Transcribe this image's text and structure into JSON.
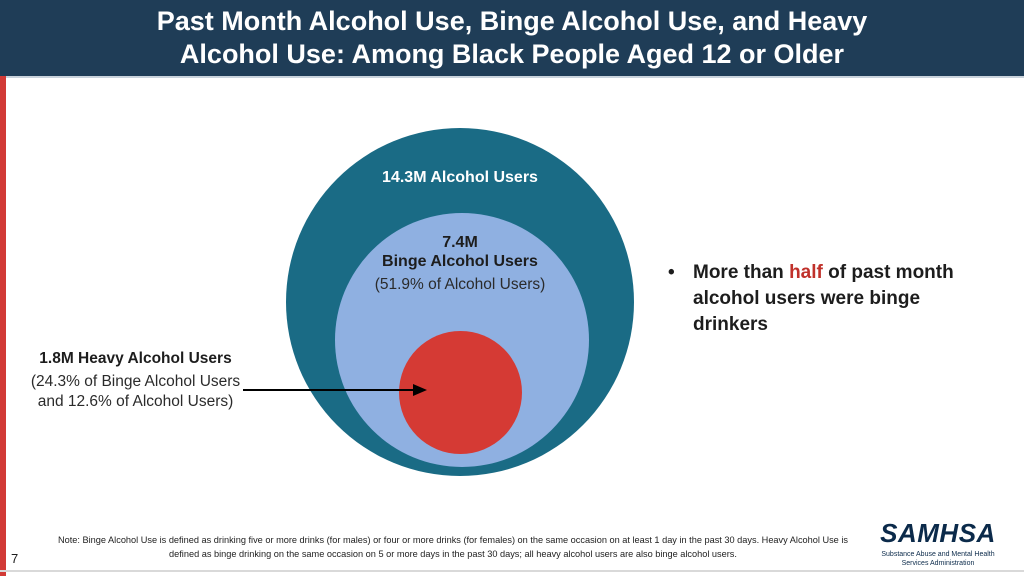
{
  "title": "Past Month Alcohol Use, Binge Alcohol Use, and Heavy\nAlcohol Use: Among Black People Aged 12 or Older",
  "colors": {
    "header_bg": "#1f3d57",
    "outer_circle": "#1a6b85",
    "middle_circle": "#8fb0e1",
    "inner_circle": "#d53a34",
    "accent_red": "#c0312b",
    "left_bar": "#d23a36"
  },
  "diagram": {
    "outer": {
      "label": "14.3M Alcohol Users",
      "value_millions": 14.3
    },
    "middle": {
      "count": "7.4M",
      "name": "Binge Alcohol Users",
      "pct_text": "(51.9% of Alcohol Users)",
      "value_millions": 7.4
    },
    "inner": {
      "name": "1.8M Heavy Alcohol Users",
      "pct_text": "(24.3% of Binge Alcohol Users and 12.6% of Alcohol Users)",
      "value_millions": 1.8
    }
  },
  "bullet": {
    "prefix": "More than ",
    "highlight": "half",
    "suffix": " of past month alcohol users were binge drinkers"
  },
  "note": "Note: Binge Alcohol Use is defined as drinking five or more drinks (for males) or four or more drinks (for females) on the same occasion on at least 1 day in the past 30 days. Heavy Alcohol Use is defined as binge drinking on the same occasion on 5 or more days in the past 30 days; all heavy alcohol users are also binge alcohol users.",
  "page_number": "7",
  "logo": {
    "word": "SAMHSA",
    "subtitle": "Substance Abuse and Mental Health\nServices Administration"
  }
}
